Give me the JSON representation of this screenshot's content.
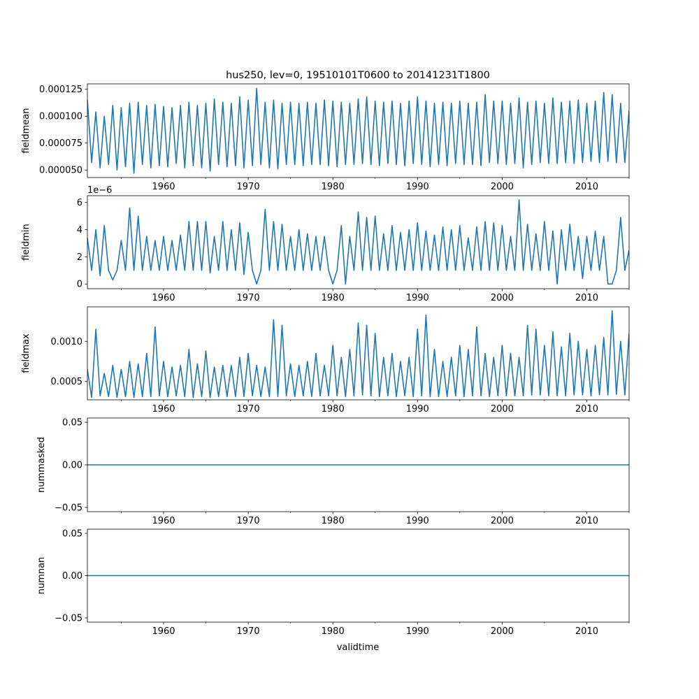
{
  "figure": {
    "title": "hus250, lev=0, 19510101T0600 to 20141231T1800",
    "xlabel": "validtime"
  },
  "colors": {
    "line": "#1f77b4",
    "axes": "#000000",
    "background": "#ffffff"
  },
  "chart_data": [
    {
      "type": "line",
      "ylabel": "fieldmean",
      "xlim": [
        1951.0,
        2015.0
      ],
      "ylim": [
        4.3e-05,
        0.00013
      ],
      "yticks": [
        5e-05,
        7.5e-05,
        0.0001,
        0.000125
      ],
      "ytick_labels": [
        "0.000050",
        "0.000075",
        "0.000100",
        "0.000125"
      ],
      "xticks": [
        1960,
        1970,
        1980,
        1990,
        2000,
        2010
      ],
      "xtick_labels": [
        "1960",
        "1970",
        "1980",
        "1990",
        "2000",
        "2010"
      ],
      "offset_text": "",
      "series": [
        {
          "name": "fieldmean",
          "x": [
            1951.0,
            1951.5,
            1952.0,
            1952.5,
            1953.0,
            1953.5,
            1954.0,
            1954.5,
            1955.0,
            1955.5,
            1956.0,
            1956.5,
            1957.0,
            1957.5,
            1958.0,
            1958.5,
            1959.0,
            1959.5,
            1960.0,
            1960.5,
            1961.0,
            1961.5,
            1962.0,
            1962.5,
            1963.0,
            1963.5,
            1964.0,
            1964.5,
            1965.0,
            1965.5,
            1966.0,
            1966.5,
            1967.0,
            1967.5,
            1968.0,
            1968.5,
            1969.0,
            1969.5,
            1970.0,
            1970.5,
            1971.0,
            1971.5,
            1972.0,
            1972.5,
            1973.0,
            1973.5,
            1974.0,
            1974.5,
            1975.0,
            1975.5,
            1976.0,
            1976.5,
            1977.0,
            1977.5,
            1978.0,
            1978.5,
            1979.0,
            1979.5,
            1980.0,
            1980.5,
            1981.0,
            1981.5,
            1982.0,
            1982.5,
            1983.0,
            1983.5,
            1984.0,
            1984.5,
            1985.0,
            1985.5,
            1986.0,
            1986.5,
            1987.0,
            1987.5,
            1988.0,
            1988.5,
            1989.0,
            1989.5,
            1990.0,
            1990.5,
            1991.0,
            1991.5,
            1992.0,
            1992.5,
            1993.0,
            1993.5,
            1994.0,
            1994.5,
            1995.0,
            1995.5,
            1996.0,
            1996.5,
            1997.0,
            1997.5,
            1998.0,
            1998.5,
            1999.0,
            1999.5,
            2000.0,
            2000.5,
            2001.0,
            2001.5,
            2002.0,
            2002.5,
            2003.0,
            2003.5,
            2004.0,
            2004.5,
            2005.0,
            2005.5,
            2006.0,
            2006.5,
            2007.0,
            2007.5,
            2008.0,
            2008.5,
            2009.0,
            2009.5,
            2010.0,
            2010.5,
            2011.0,
            2011.5,
            2012.0,
            2012.5,
            2013.0,
            2013.5,
            2014.0,
            2014.5,
            2015.0
          ],
          "y": [
            0.000115,
            5.7e-05,
            0.000104,
            5.2e-05,
            0.0001,
            5.5e-05,
            0.00011,
            5e-05,
            0.000108,
            5.3e-05,
            0.000112,
            4.7e-05,
            0.000113,
            5.5e-05,
            0.00011,
            5.2e-05,
            0.000111,
            5.4e-05,
            0.000109,
            5.3e-05,
            0.000108,
            5.6e-05,
            0.00011,
            5.2e-05,
            0.000113,
            5.4e-05,
            0.00011,
            5.2e-05,
            0.000112,
            4.9e-05,
            0.000116,
            5.5e-05,
            0.000113,
            5.3e-05,
            0.000112,
            5.4e-05,
            0.000118,
            5.2e-05,
            0.000115,
            5.4e-05,
            0.000126,
            5.5e-05,
            0.000113,
            5.2e-05,
            0.000115,
            5.1e-05,
            0.000112,
            5.5e-05,
            0.000113,
            5.5e-05,
            0.000112,
            5.4e-05,
            0.000113,
            5.5e-05,
            0.000112,
            5.5e-05,
            0.000115,
            5.4e-05,
            0.000114,
            5.3e-05,
            0.000113,
            5.5e-05,
            0.000112,
            5.5e-05,
            0.000116,
            5.6e-05,
            0.000118,
            5.5e-05,
            0.000114,
            5.4e-05,
            0.000113,
            5.6e-05,
            0.000114,
            5.5e-05,
            0.000112,
            5.4e-05,
            0.000114,
            5.6e-05,
            0.000118,
            5.5e-05,
            0.000114,
            5.3e-05,
            0.000112,
            5.5e-05,
            0.000113,
            5.4e-05,
            0.000112,
            5.6e-05,
            0.000114,
            5.5e-05,
            0.000112,
            5.5e-05,
            0.000113,
            5.4e-05,
            0.00012,
            5.7e-05,
            0.000114,
            5.6e-05,
            0.000114,
            5.5e-05,
            0.000112,
            5.6e-05,
            0.000117,
            5.2e-05,
            0.000113,
            5.5e-05,
            0.000114,
            5.7e-05,
            0.000112,
            5.6e-05,
            0.000117,
            5.6e-05,
            0.000113,
            5.7e-05,
            0.000114,
            5.6e-05,
            0.000115,
            5.7e-05,
            0.000112,
            5.8e-05,
            0.000114,
            5.7e-05,
            0.000122,
            5.8e-05,
            0.00012,
            5.7e-05,
            0.000112,
            5.7e-05,
            0.000105
          ]
        }
      ]
    },
    {
      "type": "line",
      "ylabel": "fieldmin",
      "xlim": [
        1951.0,
        2015.0
      ],
      "ylim": [
        -0.35,
        6.5
      ],
      "yticks": [
        0,
        2,
        4,
        6
      ],
      "ytick_labels": [
        "0",
        "2",
        "4",
        "6"
      ],
      "xticks": [
        1960,
        1970,
        1980,
        1990,
        2000,
        2010
      ],
      "xtick_labels": [
        "1960",
        "1970",
        "1980",
        "1990",
        "2000",
        "2010"
      ],
      "offset_text": "1e−6",
      "series": [
        {
          "name": "fieldmin",
          "x": [
            1951.0,
            1951.5,
            1952.0,
            1952.5,
            1953.0,
            1953.5,
            1954.0,
            1954.5,
            1955.0,
            1955.5,
            1956.0,
            1956.5,
            1957.0,
            1957.5,
            1958.0,
            1958.5,
            1959.0,
            1959.5,
            1960.0,
            1960.5,
            1961.0,
            1961.5,
            1962.0,
            1962.5,
            1963.0,
            1963.5,
            1964.0,
            1964.5,
            1965.0,
            1965.5,
            1966.0,
            1966.5,
            1967.0,
            1967.5,
            1968.0,
            1968.5,
            1969.0,
            1969.5,
            1970.0,
            1970.5,
            1971.0,
            1971.5,
            1972.0,
            1972.5,
            1973.0,
            1973.5,
            1974.0,
            1974.5,
            1975.0,
            1975.5,
            1976.0,
            1976.5,
            1977.0,
            1977.5,
            1978.0,
            1978.5,
            1979.0,
            1979.5,
            1980.0,
            1980.5,
            1981.0,
            1981.5,
            1982.0,
            1982.5,
            1983.0,
            1983.5,
            1984.0,
            1984.5,
            1985.0,
            1985.5,
            1986.0,
            1986.5,
            1987.0,
            1987.5,
            1988.0,
            1988.5,
            1989.0,
            1989.5,
            1990.0,
            1990.5,
            1991.0,
            1991.5,
            1992.0,
            1992.5,
            1993.0,
            1993.5,
            1994.0,
            1994.5,
            1995.0,
            1995.5,
            1996.0,
            1996.5,
            1997.0,
            1997.5,
            1998.0,
            1998.5,
            1999.0,
            1999.5,
            2000.0,
            2000.5,
            2001.0,
            2001.5,
            2002.0,
            2002.5,
            2003.0,
            2003.5,
            2004.0,
            2004.5,
            2005.0,
            2005.5,
            2006.0,
            2006.5,
            2007.0,
            2007.5,
            2008.0,
            2008.5,
            2009.0,
            2009.5,
            2010.0,
            2010.5,
            2011.0,
            2011.5,
            2012.0,
            2012.5,
            2013.0,
            2013.5,
            2014.0,
            2014.5,
            2015.0
          ],
          "y": [
            3.4,
            1.0,
            4.0,
            0.6,
            4.3,
            1.0,
            0.3,
            1.0,
            3.2,
            1.0,
            5.6,
            1.0,
            5.0,
            1.0,
            3.5,
            1.0,
            3.2,
            1.0,
            3.5,
            1.0,
            3.2,
            1.0,
            3.6,
            1.0,
            4.6,
            1.0,
            4.6,
            1.0,
            4.6,
            0.8,
            3.5,
            1.0,
            4.6,
            1.0,
            4.0,
            1.0,
            4.5,
            0.7,
            3.8,
            1.0,
            0.0,
            1.0,
            5.5,
            1.0,
            4.6,
            1.0,
            4.4,
            1.0,
            3.5,
            1.0,
            4.0,
            1.0,
            3.7,
            1.0,
            3.5,
            1.0,
            3.5,
            1.0,
            0.0,
            1.0,
            4.3,
            0.0,
            3.5,
            1.0,
            5.3,
            1.0,
            4.9,
            1.0,
            5.0,
            1.0,
            3.7,
            1.0,
            4.3,
            1.0,
            3.8,
            1.0,
            4.0,
            1.0,
            4.5,
            1.0,
            3.9,
            1.0,
            3.6,
            1.0,
            4.2,
            1.0,
            4.0,
            1.0,
            4.3,
            1.0,
            3.4,
            1.0,
            4.2,
            1.0,
            4.6,
            1.0,
            4.5,
            1.0,
            4.3,
            1.0,
            3.5,
            1.0,
            6.2,
            1.0,
            4.4,
            1.0,
            3.7,
            1.0,
            4.6,
            1.0,
            3.9,
            0.0,
            4.0,
            1.0,
            4.4,
            1.0,
            3.5,
            0.4,
            3.5,
            1.0,
            3.9,
            1.0,
            3.5,
            0.0,
            0.0,
            1.0,
            4.9,
            1.0,
            2.5
          ]
        }
      ]
    },
    {
      "type": "line",
      "ylabel": "fieldmax",
      "xlim": [
        1951.0,
        2015.0
      ],
      "ylim": [
        0.00027,
        0.00143
      ],
      "yticks": [
        0.0005,
        0.001
      ],
      "ytick_labels": [
        "0.0005",
        "0.0010"
      ],
      "xticks": [
        1960,
        1970,
        1980,
        1990,
        2000,
        2010
      ],
      "xtick_labels": [
        "1960",
        "1970",
        "1980",
        "1990",
        "2000",
        "2010"
      ],
      "offset_text": "",
      "series": [
        {
          "name": "fieldmax",
          "x": [
            1951.0,
            1951.5,
            1952.0,
            1952.5,
            1953.0,
            1953.5,
            1954.0,
            1954.5,
            1955.0,
            1955.5,
            1956.0,
            1956.5,
            1957.0,
            1957.5,
            1958.0,
            1958.5,
            1959.0,
            1959.5,
            1960.0,
            1960.5,
            1961.0,
            1961.5,
            1962.0,
            1962.5,
            1963.0,
            1963.5,
            1964.0,
            1964.5,
            1965.0,
            1965.5,
            1966.0,
            1966.5,
            1967.0,
            1967.5,
            1968.0,
            1968.5,
            1969.0,
            1969.5,
            1970.0,
            1970.5,
            1971.0,
            1971.5,
            1972.0,
            1972.5,
            1973.0,
            1973.5,
            1974.0,
            1974.5,
            1975.0,
            1975.5,
            1976.0,
            1976.5,
            1977.0,
            1977.5,
            1978.0,
            1978.5,
            1979.0,
            1979.5,
            1980.0,
            1980.5,
            1981.0,
            1981.5,
            1982.0,
            1982.5,
            1983.0,
            1983.5,
            1984.0,
            1984.5,
            1985.0,
            1985.5,
            1986.0,
            1986.5,
            1987.0,
            1987.5,
            1988.0,
            1988.5,
            1989.0,
            1989.5,
            1990.0,
            1990.5,
            1991.0,
            1991.5,
            1992.0,
            1992.5,
            1993.0,
            1993.5,
            1994.0,
            1994.5,
            1995.0,
            1995.5,
            1996.0,
            1996.5,
            1997.0,
            1997.5,
            1998.0,
            1998.5,
            1999.0,
            1999.5,
            2000.0,
            2000.5,
            2001.0,
            2001.5,
            2002.0,
            2002.5,
            2003.0,
            2003.5,
            2004.0,
            2004.5,
            2005.0,
            2005.5,
            2006.0,
            2006.5,
            2007.0,
            2007.5,
            2008.0,
            2008.5,
            2009.0,
            2009.5,
            2010.0,
            2010.5,
            2011.0,
            2011.5,
            2012.0,
            2012.5,
            2013.0,
            2013.5,
            2014.0,
            2014.5,
            2015.0
          ],
          "y": [
            0.00065,
            0.0003,
            0.00115,
            0.00032,
            0.0006,
            0.00031,
            0.0007,
            0.0003,
            0.00065,
            0.00031,
            0.00075,
            0.0003,
            0.00072,
            0.00031,
            0.00085,
            0.00031,
            0.00118,
            0.00032,
            0.00075,
            0.00031,
            0.00068,
            0.00032,
            0.0007,
            0.00031,
            0.0009,
            0.0003,
            0.00072,
            0.00031,
            0.00088,
            0.0003,
            0.00068,
            0.00031,
            0.0007,
            0.00031,
            0.0007,
            0.00031,
            0.0008,
            0.00031,
            0.00085,
            0.00032,
            0.0007,
            0.00031,
            0.00068,
            0.00031,
            0.00127,
            0.00031,
            0.0012,
            0.00032,
            0.00072,
            0.00031,
            0.0007,
            0.00032,
            0.00075,
            0.00031,
            0.00085,
            0.00032,
            0.0007,
            0.00032,
            0.00095,
            0.00032,
            0.0008,
            0.00031,
            0.0009,
            0.00032,
            0.00123,
            0.00033,
            0.0012,
            0.00032,
            0.0011,
            0.00031,
            0.0008,
            0.00032,
            0.00085,
            0.00031,
            0.00075,
            0.00032,
            0.0008,
            0.00031,
            0.00115,
            0.00032,
            0.00133,
            0.00031,
            0.0009,
            0.00031,
            0.00075,
            0.00031,
            0.0008,
            0.00032,
            0.00095,
            0.00031,
            0.0009,
            0.00032,
            0.00118,
            0.00032,
            0.00085,
            0.00031,
            0.0008,
            0.00032,
            0.00095,
            0.00032,
            0.00085,
            0.00032,
            0.0008,
            0.00032,
            0.0012,
            0.00033,
            0.00115,
            0.00033,
            0.00095,
            0.00032,
            0.00112,
            0.00032,
            0.00093,
            0.00032,
            0.0011,
            0.00033,
            0.001,
            0.00033,
            0.0009,
            0.00032,
            0.00095,
            0.00033,
            0.00105,
            0.00033,
            0.00138,
            0.00034,
            0.001,
            0.00033,
            0.0011
          ]
        }
      ]
    },
    {
      "type": "line",
      "ylabel": "nummasked",
      "xlim": [
        1951.0,
        2015.0
      ],
      "ylim": [
        -0.055,
        0.055
      ],
      "yticks": [
        -0.05,
        0.0,
        0.05
      ],
      "ytick_labels": [
        "−0.05",
        "0.00",
        "0.05"
      ],
      "xticks": [
        1960,
        1970,
        1980,
        1990,
        2000,
        2010
      ],
      "xtick_labels": [
        "1960",
        "1970",
        "1980",
        "1990",
        "2000",
        "2010"
      ],
      "offset_text": "",
      "series": [
        {
          "name": "nummasked",
          "x": [
            1951.0,
            2015.0
          ],
          "y": [
            0,
            0
          ]
        }
      ]
    },
    {
      "type": "line",
      "ylabel": "numnan",
      "xlim": [
        1951.0,
        2015.0
      ],
      "ylim": [
        -0.055,
        0.055
      ],
      "yticks": [
        -0.05,
        0.0,
        0.05
      ],
      "ytick_labels": [
        "−0.05",
        "0.00",
        "0.05"
      ],
      "xticks": [
        1960,
        1970,
        1980,
        1990,
        2000,
        2010
      ],
      "xtick_labels": [
        "1960",
        "1970",
        "1980",
        "1990",
        "2000",
        "2010"
      ],
      "offset_text": "",
      "series": [
        {
          "name": "numnan",
          "x": [
            1951.0,
            2015.0
          ],
          "y": [
            0,
            0
          ]
        }
      ]
    }
  ]
}
